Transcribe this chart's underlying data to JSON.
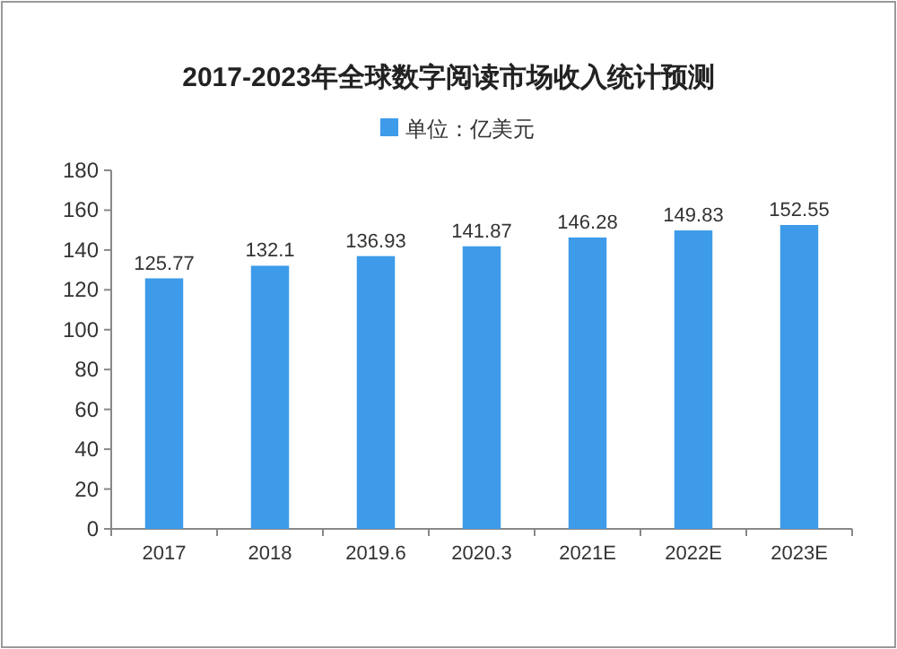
{
  "chart_data": {
    "type": "bar",
    "title": "2017-2023年全球数字阅读市场收入统计预测",
    "categories": [
      "2017",
      "2018",
      "2019.6",
      "2020.3",
      "2021E",
      "2022E",
      "2023E"
    ],
    "series": [
      {
        "name": "单位：亿美元",
        "color": "#3d9be9",
        "values": [
          125.77,
          132.1,
          136.93,
          141.87,
          146.28,
          149.83,
          152.55
        ]
      }
    ],
    "ylim": [
      0,
      180
    ],
    "yticks": [
      0,
      20,
      40,
      60,
      80,
      100,
      120,
      140,
      160,
      180
    ],
    "data_labels": true,
    "legend": "top",
    "grid": false
  }
}
